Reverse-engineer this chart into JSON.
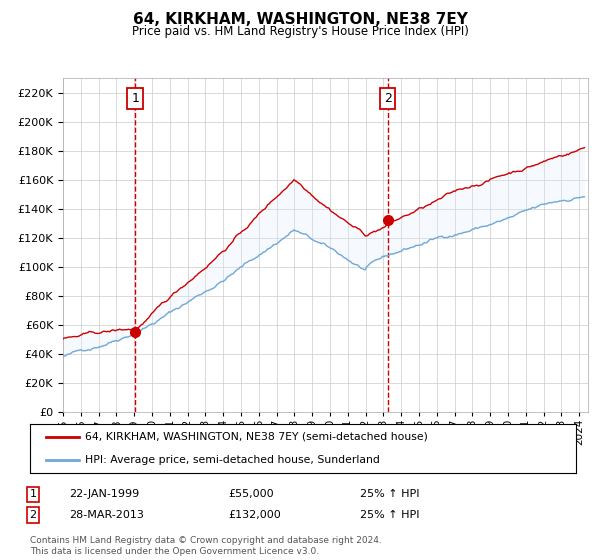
{
  "title": "64, KIRKHAM, WASHINGTON, NE38 7EY",
  "subtitle": "Price paid vs. HM Land Registry's House Price Index (HPI)",
  "legend_line1": "64, KIRKHAM, WASHINGTON, NE38 7EY (semi-detached house)",
  "legend_line2": "HPI: Average price, semi-detached house, Sunderland",
  "marker1_date_str": "22-JAN-1999",
  "marker1_price": 55000,
  "marker1_label": "25% ↑ HPI",
  "marker2_date_str": "28-MAR-2013",
  "marker2_price": 132000,
  "marker2_label": "25% ↑ HPI",
  "footer": "Contains HM Land Registry data © Crown copyright and database right 2024.\nThis data is licensed under the Open Government Licence v3.0.",
  "hpi_color": "#6ea8d8",
  "price_color": "#cc0000",
  "marker_color": "#cc0000",
  "background_color": "#ffffff",
  "grid_color": "#cccccc",
  "shade_color": "#ddeeff",
  "ylim": [
    0,
    230000
  ],
  "yticks": [
    0,
    20000,
    40000,
    60000,
    80000,
    100000,
    120000,
    140000,
    160000,
    180000,
    200000,
    220000
  ],
  "xlim_start": 1995.0,
  "xlim_end": 2024.5,
  "marker1_year": 1999.056,
  "marker2_year": 2013.24
}
